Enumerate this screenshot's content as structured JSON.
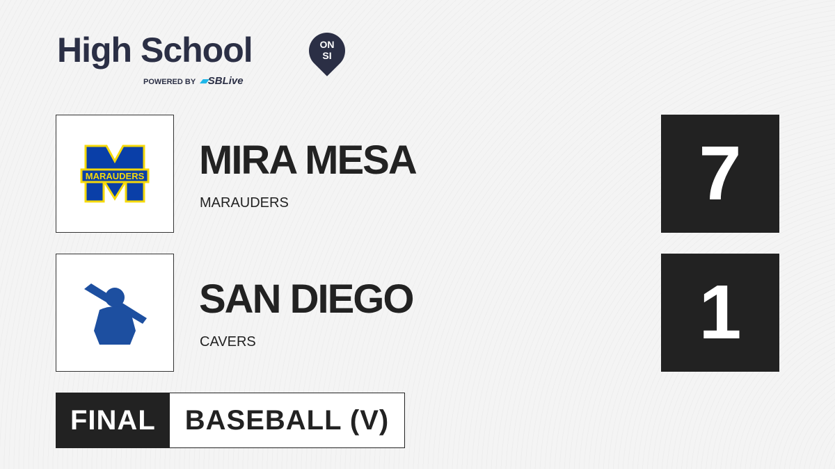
{
  "brand": {
    "title": "High School",
    "badge_top": "ON",
    "badge_bottom": "SI",
    "powered_by": "POWERED BY",
    "partner": "SBLive"
  },
  "teams": [
    {
      "name": "MIRA MESA",
      "mascot": "MARAUDERS",
      "logo_text": "MARAUDERS",
      "score": "7",
      "logo_color": "#0a3fa8",
      "logo_accent": "#f5d90a"
    },
    {
      "name": "SAN DIEGO",
      "mascot": "CAVERS",
      "score": "1",
      "logo_color": "#1d4fa0"
    }
  ],
  "status": "FINAL",
  "sport": "BASEBALL (V)"
}
